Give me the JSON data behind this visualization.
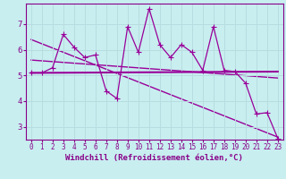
{
  "xlabel": "Windchill (Refroidissement éolien,°C)",
  "bg_color": "#c8eef0",
  "line_color": "#990099",
  "grid_color": "#b8dde0",
  "axis_color": "#880088",
  "text_color": "#880088",
  "xlim": [
    -0.5,
    23.5
  ],
  "ylim": [
    2.5,
    7.8
  ],
  "xticks": [
    0,
    1,
    2,
    3,
    4,
    5,
    6,
    7,
    8,
    9,
    10,
    11,
    12,
    13,
    14,
    15,
    16,
    17,
    18,
    19,
    20,
    21,
    22,
    23
  ],
  "yticks": [
    3,
    4,
    5,
    6,
    7
  ],
  "series1_x": [
    0,
    1,
    2,
    3,
    4,
    5,
    6,
    7,
    8,
    9,
    10,
    11,
    12,
    13,
    14,
    15,
    16,
    17,
    18,
    19,
    20,
    21,
    22,
    23
  ],
  "series1_y": [
    5.1,
    5.1,
    5.3,
    6.6,
    6.1,
    5.7,
    5.8,
    4.4,
    4.1,
    6.9,
    5.9,
    7.6,
    6.2,
    5.7,
    6.2,
    5.9,
    5.2,
    6.9,
    5.2,
    5.15,
    4.7,
    3.5,
    3.55,
    2.55
  ],
  "series2_x": [
    0,
    23
  ],
  "series2_y": [
    5.1,
    5.15
  ],
  "series3_x": [
    0,
    23
  ],
  "series3_y": [
    5.6,
    4.9
  ],
  "series4_x": [
    0,
    23
  ],
  "series4_y": [
    6.4,
    2.6
  ],
  "lw_main": 0.9,
  "lw_flat": 1.5,
  "lw_reg": 1.0,
  "marker_size": 2.5
}
